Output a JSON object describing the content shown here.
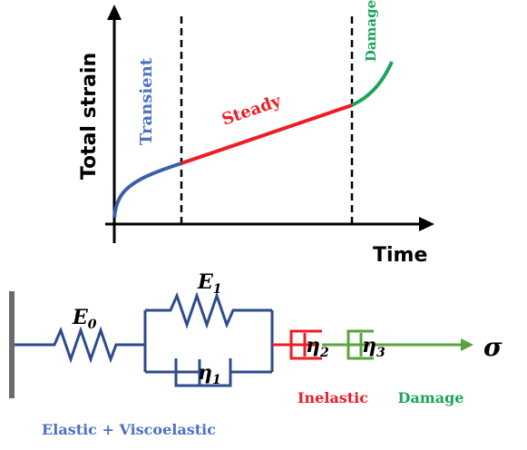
{
  "chart": {
    "ylabel": "Total strain",
    "xlabel": "Time",
    "phases": [
      {
        "label": "Transient",
        "color": "#3b5ea8"
      },
      {
        "label": "Steady",
        "color": "#ee1c24"
      },
      {
        "label": "Damage",
        "color": "#1aa55a"
      }
    ]
  },
  "model": {
    "spring0": "E",
    "spring0_sub": "0",
    "spring1": "E",
    "spring1_sub": "1",
    "dashpot1": "η",
    "dashpot1_sub": "1",
    "dashpot2": "η",
    "dashpot2_sub": "2",
    "dashpot3": "η",
    "dashpot3_sub": "3",
    "stress": "σ",
    "label_elastic": "Elastic + Viscoelastic",
    "label_inelastic": "Inelastic",
    "label_damage": "Damage"
  },
  "colors": {
    "blue": "#2e4b8c",
    "blue_label": "#4a72c4",
    "red": "#ee1c24",
    "green": "#5aa33a",
    "green_label": "#1aa55a",
    "wall": "#6b6b6b",
    "axis": "#000000"
  }
}
